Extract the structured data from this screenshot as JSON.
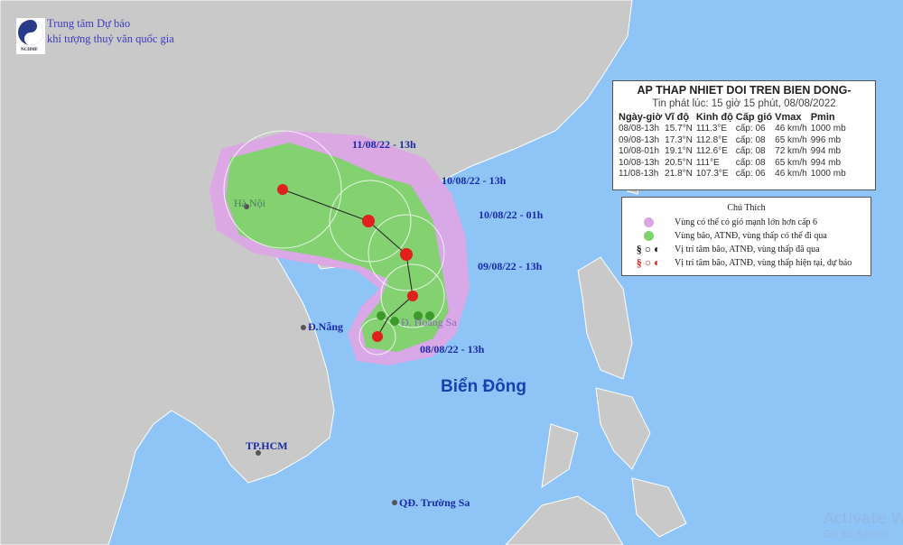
{
  "header": {
    "org_line1": "Trung tâm Dự báo",
    "org_line2": "khí tượng thuỷ văn quốc gia",
    "logo_text": "NCHMF"
  },
  "bulletin": {
    "title": "AP THAP NHIET DOI TREN BIEN DONG-",
    "issued": "Tin phát lúc: 15 giờ 15 phút, 08/08/2022",
    "columns": [
      "Ngày-giờ",
      "Vĩ độ",
      "Kinh độ",
      "Cấp gió",
      "Vmax",
      "Pmin"
    ],
    "rows": [
      [
        "08/08-13h",
        "15.7°N",
        "111.3°E",
        "cấp: 06",
        "46 km/h",
        "1000 mb"
      ],
      [
        "09/08-13h",
        "17.3°N",
        "112.8°E",
        "cấp: 08",
        "65 km/h",
        "996 mb"
      ],
      [
        "10/08-01h",
        "19.1°N",
        "112.6°E",
        "cấp: 08",
        "72 km/h",
        "994 mb"
      ],
      [
        "10/08-13h",
        "20.5°N",
        "111°E",
        "cấp: 08",
        "65 km/h",
        "994 mb"
      ],
      [
        "11/08-13h",
        "21.8°N",
        "107.3°E",
        "cấp: 06",
        "46 km/h",
        "1000 mb"
      ]
    ]
  },
  "legend": {
    "title": "Chú Thích",
    "items": [
      {
        "text": "Vùng có thể có gió mạnh lớn hơn cấp 6",
        "color": "#e0a8e8"
      },
      {
        "text": "Vùng bão, ATNĐ, vùng thấp có thể đi qua",
        "color": "#7ccf6c"
      },
      {
        "text": "Vị trí tâm bão, ATNĐ, vùng thấp đã qua",
        "color": "#111111"
      },
      {
        "text": "Vị trí tâm bão, ATNĐ, vùng thấp hiện tại, dự báo",
        "color": "#e02020"
      }
    ]
  },
  "map": {
    "track_labels": [
      "11/08/22 - 13h",
      "10/08/22 - 13h",
      "10/08/22 - 01h",
      "09/08/22 - 13h",
      "08/08/22 - 13h"
    ],
    "places": {
      "hanoi": "Hà Nội",
      "danang": "Đ.Nẵng",
      "hoangsa": "Đ. Hoàng Sa",
      "hcm": "TP.HCM",
      "truongsa": "QĐ. Trường Sa",
      "sea": "Biển Đông"
    },
    "colors": {
      "ocean": "#8ec4f6",
      "land": "#c9c9c9",
      "wind_zone": "#dca6e6",
      "track_zone": "#7fd36b",
      "center": "#e0201c"
    }
  },
  "watermark": {
    "line1": "Activate W",
    "line2": "Go to Settin"
  }
}
